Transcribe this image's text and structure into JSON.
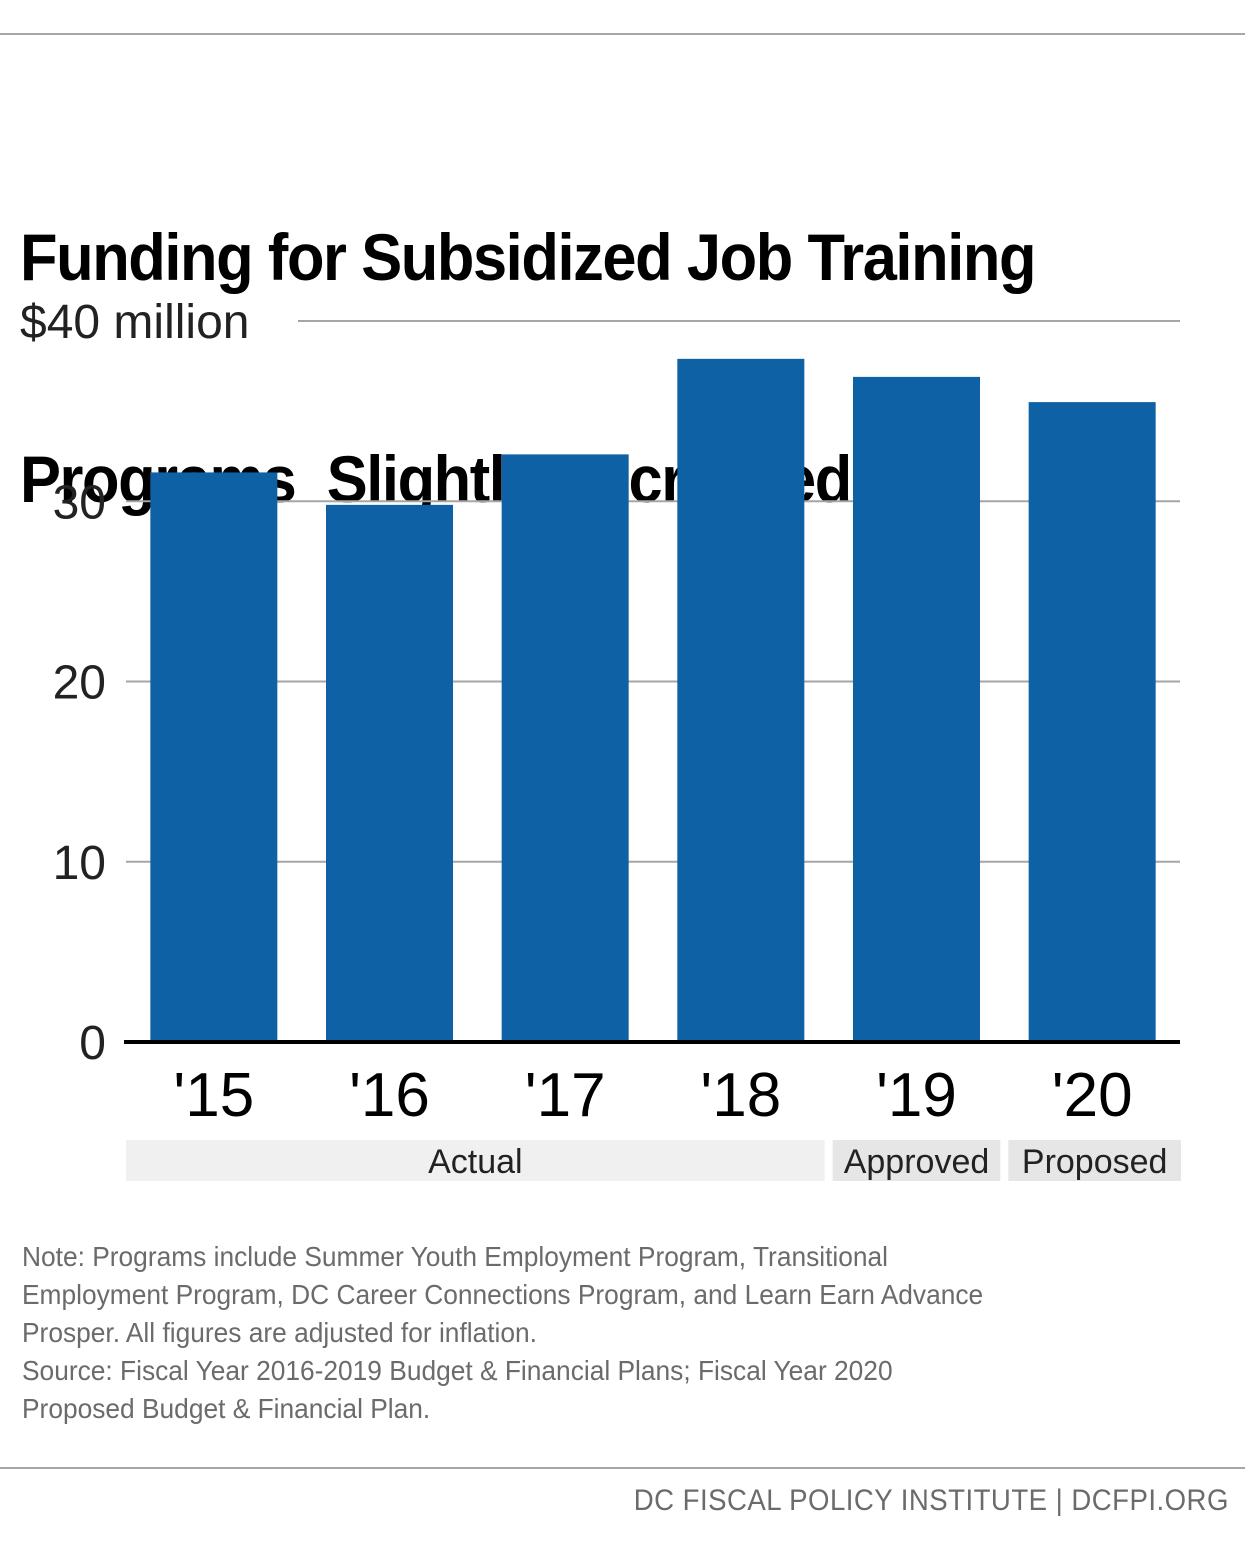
{
  "title": "Funding for Subsidized Job Training Programs  Slightly Decreased",
  "title_lines": [
    "Funding for Subsidized Job Training",
    "Programs  Slightly Decreased"
  ],
  "colors": {
    "bar": "#0e61a5",
    "gridline": "#a6a6a6",
    "baseline": "#000000",
    "group_actual_bg": "#f0f0f0",
    "group_other_bg": "#e6e6e6",
    "note_text": "#6b6b6b"
  },
  "chart_data": {
    "type": "bar",
    "title": "Funding for Subsidized Job Training Programs  Slightly Decreased",
    "xlabel": "",
    "ylabel": "",
    "categories": [
      "'15",
      "'16",
      "'17",
      "'18",
      "'19",
      "'20"
    ],
    "values": [
      31.6,
      29.8,
      32.6,
      37.9,
      36.9,
      35.5
    ],
    "units": "$ million",
    "ylim": [
      0,
      40
    ],
    "yticks": [
      0,
      10,
      20,
      30,
      40
    ],
    "ytick_labels": [
      "0",
      "10",
      "20",
      "30",
      "$40 million"
    ],
    "grid": true,
    "legend": "none",
    "category_groups": [
      {
        "label": "Actual",
        "categories": [
          "'15",
          "'16",
          "'17",
          "'18"
        ]
      },
      {
        "label": "Approved",
        "categories": [
          "'19"
        ]
      },
      {
        "label": "Proposed",
        "categories": [
          "'20"
        ]
      }
    ]
  },
  "notes": [
    "Note: Programs include Summer Youth Employment Program, Transitional",
    "Employment Program, DC Career Connections Program, and Learn Earn Advance",
    "Prosper. All figures are adjusted for inflation.",
    "Source: Fiscal Year 2016-2019 Budget & Financial Plans; Fiscal Year 2020",
    "Proposed Budget & Financial Plan."
  ],
  "footer": "DC FISCAL POLICY INSTITUTE | DCFPI.ORG"
}
